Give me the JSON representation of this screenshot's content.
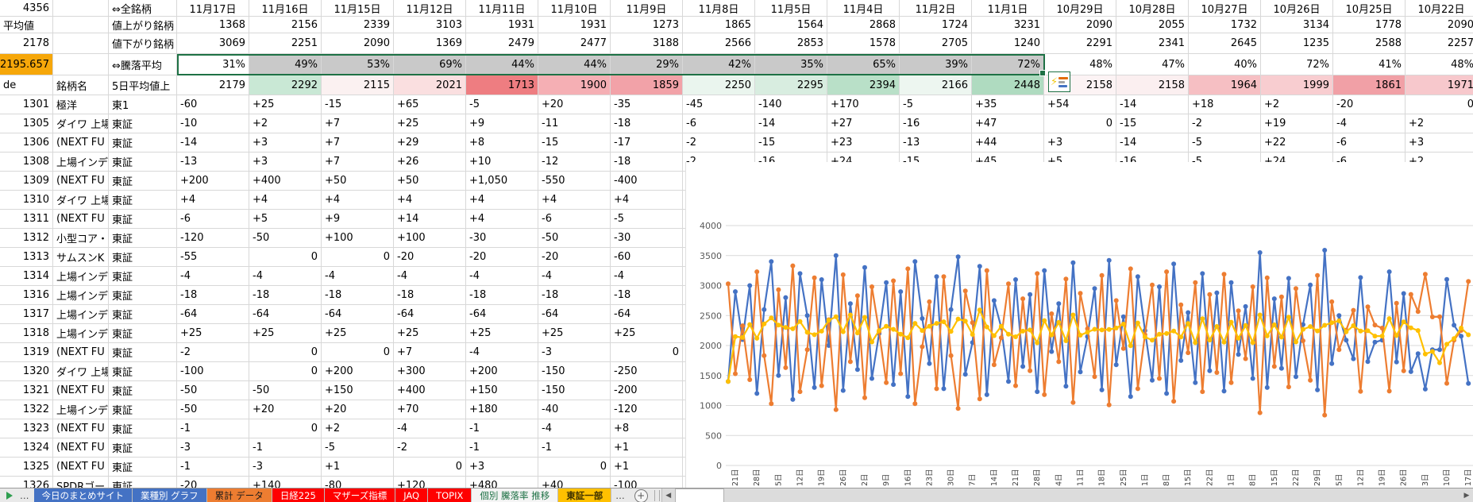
{
  "header": {
    "total_issues": "4356",
    "all_issues_label": "⇔全銘柄",
    "average_label": "平均値",
    "advancers_label": "値上がり銘柄",
    "average_value": "2178",
    "decliners_label": "値下がり銘柄",
    "highlight_value": "2195.657",
    "updown_avg_label": "⇔騰落平均",
    "code_label": "de",
    "name_label": "銘柄名",
    "avg5_label": "5日平均値上"
  },
  "colors": {
    "highlight_orange": "#f6a70a",
    "selection_gray": "#c9c9c9",
    "selection_green": "#1e7145",
    "grid_border": "#d8d8d8",
    "qa_bar_colors": [
      "#e36c09",
      "#a6a6a6",
      "#4472c4"
    ]
  },
  "table": {
    "dates": [
      "11月17日",
      "11月16日",
      "11月15日",
      "11月12日",
      "11月11日",
      "11月10日",
      "11月9日",
      "11月8日",
      "11月5日",
      "11月4日",
      "11月2日",
      "11月1日",
      "10月29日",
      "10月28日",
      "10月27日",
      "10月26日",
      "10月25日",
      "10月22日"
    ],
    "advancers": [
      "1368",
      "2156",
      "2339",
      "3103",
      "1931",
      "1931",
      "1273",
      "1865",
      "1564",
      "2868",
      "1724",
      "3231",
      "2090",
      "2055",
      "1732",
      "3134",
      "1778",
      "2090"
    ],
    "decliners": [
      "3069",
      "2251",
      "2090",
      "1369",
      "2479",
      "2477",
      "3188",
      "2566",
      "2853",
      "1578",
      "2705",
      "1240",
      "2291",
      "2341",
      "2645",
      "1235",
      "2588",
      "2257"
    ],
    "percent": [
      "31%",
      "49%",
      "53%",
      "69%",
      "44%",
      "44%",
      "29%",
      "42%",
      "35%",
      "65%",
      "39%",
      "72%",
      "48%",
      "47%",
      "40%",
      "72%",
      "41%",
      "48%"
    ],
    "percent_selected_through_index": 11,
    "avg5": [
      "2179",
      "2292",
      "2115",
      "2021",
      "1713",
      "1900",
      "1859",
      "2250",
      "2295",
      "2394",
      "2166",
      "2448",
      "2158",
      "2158",
      "1964",
      "1999",
      "1861",
      "1971"
    ],
    "avg5_colors": [
      "#ffffff",
      "#c9e8d5",
      "#fbf1f1",
      "#fadfe0",
      "#ee7d81",
      "#f5afb4",
      "#f2a2a8",
      "#eaf5ee",
      "#d8ede0",
      "#b9e0c8",
      "#edf6f0",
      "#afdbc0",
      "#fcf3f4",
      "#fbeff0",
      "#f6bfc3",
      "#f8cdd0",
      "#f1a0a6",
      "#f7c8cc"
    ],
    "stocks": [
      {
        "code": "1301",
        "name": "極洋",
        "market": "東1",
        "values": [
          "-60",
          "+25",
          "-15",
          "+65",
          "-5",
          "+20",
          "-35",
          "-45",
          "-140",
          "+170",
          "-5",
          "+35",
          "+54",
          "-14",
          "+18",
          "+2",
          "-20",
          "0"
        ]
      },
      {
        "code": "1305",
        "name": "ダイワ 上場",
        "market": "東証",
        "values": [
          "-10",
          "+2",
          "+7",
          "+25",
          "+9",
          "-11",
          "-18",
          "-6",
          "-14",
          "+27",
          "-16",
          "+47",
          "0",
          "-15",
          "-2",
          "+19",
          "-4",
          "+2"
        ]
      },
      {
        "code": "1306",
        "name": "(NEXT FU",
        "market": "東証",
        "values": [
          "-14",
          "+3",
          "+7",
          "+29",
          "+8",
          "-15",
          "-17",
          "-2",
          "-15",
          "+23",
          "-13",
          "+44",
          "+3",
          "-14",
          "-5",
          "+22",
          "-6",
          "+3"
        ]
      },
      {
        "code": "1308",
        "name": "上場インデ",
        "market": "東証",
        "values": [
          "-13",
          "+3",
          "+7",
          "+26",
          "+10",
          "-12",
          "-18",
          "-2",
          "-16",
          "+24",
          "-15",
          "+45",
          "+5",
          "-16",
          "-5",
          "+24",
          "-6",
          "+2"
        ]
      },
      {
        "code": "1309",
        "name": "(NEXT FU",
        "market": "東証",
        "values": [
          "+200",
          "+400",
          "+50",
          "+50",
          "+1,050",
          "-550",
          "-400",
          "",
          "",
          "",
          "",
          "",
          "",
          "",
          "",
          "",
          "",
          ""
        ]
      },
      {
        "code": "1310",
        "name": "ダイワ 上場",
        "market": "東証",
        "values": [
          "+4",
          "+4",
          "+4",
          "+4",
          "+4",
          "+4",
          "+4",
          "",
          "",
          "",
          "",
          "",
          "",
          "",
          "",
          "",
          "",
          ""
        ]
      },
      {
        "code": "1311",
        "name": "(NEXT FU",
        "market": "東証",
        "values": [
          "-6",
          "+5",
          "+9",
          "+14",
          "+4",
          "-6",
          "-5",
          "",
          "",
          "",
          "",
          "",
          "",
          "",
          "",
          "",
          "",
          ""
        ]
      },
      {
        "code": "1312",
        "name": "小型コア・",
        "market": "東証",
        "values": [
          "-120",
          "-50",
          "+100",
          "+100",
          "-30",
          "-50",
          "-30",
          "",
          "",
          "",
          "",
          "",
          "",
          "",
          "",
          "",
          "",
          ""
        ]
      },
      {
        "code": "1313",
        "name": "サムスンK",
        "market": "東証",
        "values": [
          "-55",
          "0",
          "0",
          "-20",
          "-20",
          "-20",
          "-60",
          "",
          "",
          "",
          "",
          "",
          "",
          "",
          "",
          "",
          "",
          ""
        ]
      },
      {
        "code": "1314",
        "name": "上場インデ",
        "market": "東証",
        "values": [
          "-4",
          "-4",
          "-4",
          "-4",
          "-4",
          "-4",
          "-4",
          "",
          "",
          "",
          "",
          "",
          "",
          "",
          "",
          "",
          "",
          ""
        ]
      },
      {
        "code": "1316",
        "name": "上場インデ",
        "market": "東証",
        "values": [
          "-18",
          "-18",
          "-18",
          "-18",
          "-18",
          "-18",
          "-18",
          "",
          "",
          "",
          "",
          "",
          "",
          "",
          "",
          "",
          "",
          ""
        ]
      },
      {
        "code": "1317",
        "name": "上場インデ",
        "market": "東証",
        "values": [
          "-64",
          "-64",
          "-64",
          "-64",
          "-64",
          "-64",
          "-64",
          "",
          "",
          "",
          "",
          "",
          "",
          "",
          "",
          "",
          "",
          ""
        ]
      },
      {
        "code": "1318",
        "name": "上場インデ",
        "market": "東証",
        "values": [
          "+25",
          "+25",
          "+25",
          "+25",
          "+25",
          "+25",
          "+25",
          "",
          "",
          "",
          "",
          "",
          "",
          "",
          "",
          "",
          "",
          ""
        ]
      },
      {
        "code": "1319",
        "name": "(NEXT FU",
        "market": "東証",
        "values": [
          "-2",
          "0",
          "0",
          "+7",
          "-4",
          "-3",
          "0",
          "",
          "",
          "",
          "",
          "",
          "",
          "",
          "",
          "",
          "",
          ""
        ]
      },
      {
        "code": "1320",
        "name": "ダイワ 上場",
        "market": "東証",
        "values": [
          "-100",
          "0",
          "+200",
          "+300",
          "+200",
          "-150",
          "-250",
          "",
          "",
          "",
          "",
          "",
          "",
          "",
          "",
          "",
          "",
          ""
        ]
      },
      {
        "code": "1321",
        "name": "(NEXT FU",
        "market": "東証",
        "values": [
          "-50",
          "-50",
          "+150",
          "+400",
          "+150",
          "-150",
          "-200",
          "",
          "",
          "",
          "",
          "",
          "",
          "",
          "",
          "",
          "",
          ""
        ]
      },
      {
        "code": "1322",
        "name": "上場インデ",
        "market": "東証",
        "values": [
          "-50",
          "+20",
          "+20",
          "+70",
          "+180",
          "-40",
          "-120",
          "",
          "",
          "",
          "",
          "",
          "",
          "",
          "",
          "",
          "",
          ""
        ]
      },
      {
        "code": "1323",
        "name": "(NEXT FU",
        "market": "東証",
        "values": [
          "-1",
          "0",
          "+2",
          "-4",
          "-1",
          "-4",
          "+8",
          "",
          "",
          "",
          "",
          "",
          "",
          "",
          "",
          "",
          "",
          ""
        ]
      },
      {
        "code": "1324",
        "name": "(NEXT FU",
        "market": "東証",
        "values": [
          "-3",
          "-1",
          "-5",
          "-2",
          "-1",
          "-1",
          "+1",
          "",
          "",
          "",
          "",
          "",
          "",
          "",
          "",
          "",
          "",
          ""
        ]
      },
      {
        "code": "1325",
        "name": "(NEXT FU",
        "market": "東証",
        "values": [
          "-1",
          "-3",
          "+1",
          "0",
          "+3",
          "0",
          "+1",
          "",
          "",
          "",
          "",
          "",
          "",
          "",
          "",
          "",
          "",
          ""
        ]
      },
      {
        "code": "1326",
        "name": "SPDRゴー",
        "market": "東証",
        "values": [
          "-20",
          "+140",
          "-80",
          "+120",
          "+480",
          "+40",
          "-100",
          "",
          "",
          "",
          "",
          "",
          "",
          "",
          "",
          "",
          "",
          ""
        ]
      }
    ]
  },
  "tabbar": {
    "nav_more": "…",
    "tabs": [
      {
        "label": "今日のまとめサイト",
        "bg": "#4472c4",
        "fg": "#ffffff"
      },
      {
        "label": "業種別 グラフ",
        "bg": "#4472c4",
        "fg": "#ffffff"
      },
      {
        "label": "累計 データ",
        "bg": "#ed7d31",
        "fg": "#1a1a1a"
      },
      {
        "label": "日経225",
        "bg": "#ff0000",
        "fg": "#ffffff"
      },
      {
        "label": "マザーズ指標",
        "bg": "#ff0000",
        "fg": "#ffffff"
      },
      {
        "label": "JAQ",
        "bg": "#ff0000",
        "fg": "#ffffff"
      },
      {
        "label": "TOPIX",
        "bg": "#ff0000",
        "fg": "#ffffff"
      },
      {
        "label": "個別 騰落率 推移",
        "bg": "#f5f5f5",
        "fg": "#1e7145"
      },
      {
        "label": "東証一部",
        "bg": "#ffc000",
        "fg": "#3d3000",
        "active": true
      }
    ],
    "tabs_more": "…",
    "scroll_left": "◀",
    "scroll_right": "▶"
  },
  "chart_data": {
    "type": "line",
    "title": "",
    "xlabel": "",
    "ylabel": "",
    "ylim": [
      0,
      4000
    ],
    "ytick": 500,
    "grid": "horizontal",
    "legend": "none",
    "x_label_interval": 3,
    "x_labels": [
      "21日",
      "28日",
      "5日",
      "12日",
      "19日",
      "26日",
      "2日",
      "9日",
      "16日",
      "23日",
      "30日",
      "7日",
      "14日",
      "21日",
      "28日",
      "4日",
      "11日",
      "18日",
      "25日",
      "1日",
      "8日",
      "15日",
      "22日",
      "1日",
      "8日",
      "15日",
      "22日",
      "29日",
      "5日",
      "12日",
      "19日",
      "26日",
      "3日",
      "10日",
      "17日"
    ],
    "series": [
      {
        "name": "値上がり銘柄",
        "color": "#4472c4",
        "values": [
          1400,
          2900,
          2100,
          3000,
          1200,
          2600,
          3400,
          1500,
          2800,
          1100,
          3200,
          2500,
          1300,
          3100,
          2000,
          3500,
          1250,
          2700,
          1600,
          3300,
          1450,
          2200,
          3050,
          1350,
          2900,
          1150,
          3400,
          2450,
          1700,
          3150,
          1280,
          2600,
          3480,
          1520,
          2050,
          3320,
          1180,
          2750,
          2300,
          1400,
          3100,
          1650,
          2850,
          1230,
          3250,
          1900,
          2700,
          1320,
          3380,
          1560,
          2150,
          2950,
          1260,
          3420,
          1680,
          2480,
          1150,
          3150,
          2250,
          1420,
          2980,
          1200,
          3360,
          1750,
          2550,
          1380,
          3200,
          1580,
          2880,
          1240,
          3050,
          1850,
          2650,
          1450,
          3550,
          1300,
          2780,
          1620,
          3120,
          1480,
          2350,
          3010,
          1260,
          3590,
          1700,
          2500,
          2090,
          1778,
          3134,
          1732,
          2055,
          2090,
          3231,
          1724,
          2868,
          1564,
          1865,
          1273,
          1931,
          1931,
          3103,
          2339,
          2156,
          1368
        ]
      },
      {
        "name": "値下がり銘柄",
        "color": "#ed7d31",
        "values": [
          3030,
          1530,
          2330,
          1430,
          3230,
          1830,
          1030,
          2930,
          1630,
          3330,
          1230,
          1930,
          3130,
          1330,
          2430,
          930,
          3180,
          1730,
          2830,
          1130,
          2980,
          2230,
          1380,
          3080,
          1530,
          3280,
          1030,
          1980,
          2730,
          1280,
          3150,
          1830,
          950,
          2910,
          2380,
          1110,
          3250,
          1680,
          2130,
          3030,
          1330,
          2780,
          1580,
          3200,
          1180,
          2530,
          1730,
          3110,
          1050,
          2870,
          2280,
          1480,
          3170,
          1010,
          2750,
          1950,
          3280,
          1280,
          2180,
          3010,
          1450,
          3230,
          1070,
          2680,
          1880,
          3050,
          1230,
          2850,
          1550,
          3190,
          1380,
          2580,
          1780,
          2980,
          880,
          3130,
          1650,
          2810,
          1310,
          2950,
          2080,
          1420,
          3170,
          840,
          2730,
          1930,
          2257,
          2588,
          1235,
          2645,
          2341,
          2291,
          1240,
          2705,
          1578,
          2853,
          2566,
          3188,
          2477,
          2479,
          1369,
          2090,
          2251,
          3069
        ]
      },
      {
        "name": "5日平均",
        "color": "#ffc000",
        "derived": "ma5",
        "source_series": 0
      }
    ]
  }
}
